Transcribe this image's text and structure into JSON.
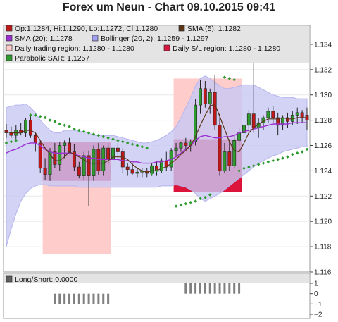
{
  "title": "Forex um Neun - Chart 09.10.2015 09:41",
  "colors": {
    "panel_bg": "#ffffff",
    "legend_bg": "#e4e4e4",
    "bollinger_fill": "#c8c8f4",
    "daily_trading_fill": "#ffcccc",
    "daily_sl_fill": "#dc143c",
    "up_candle": "#2e9b2e",
    "down_candle": "#c01818",
    "sma5": "#5a3518",
    "sma20": "#9b30d0",
    "psar": "#2e9b2e",
    "longshort": "#808080"
  },
  "chart_data": [
    {
      "type": "candlestick",
      "ylim": [
        1.116,
        1.1355
      ],
      "yticks": [
        1.116,
        1.118,
        1.12,
        1.122,
        1.124,
        1.126,
        1.128,
        1.13,
        1.132,
        1.134
      ],
      "ytick_labels": [
        "1.116",
        "1.118",
        "1.120",
        "1.122",
        "1.124",
        "1.126",
        "1.128",
        "1.130",
        "1.132",
        "1.134"
      ],
      "grid": true,
      "legend": [
        {
          "text": "Op:1.1284, Hi:1.1290, Lo:1.1272, Cl:1.1280",
          "color": "#c01818"
        },
        {
          "text": "SMA (5): 1.1282",
          "color": "#5a3518"
        },
        {
          "text": "SMA (20): 1.1278",
          "color": "#9b30d0"
        },
        {
          "text": "Bollinger (20, 2): 1.1259 - 1.1297",
          "color": "#a0a0ee"
        },
        {
          "text": "Daily trading region: 1.1280 - 1.1280",
          "color": "#ffcccc"
        },
        {
          "text": "Daily S/L region: 1.1280 - 1.1280",
          "color": "#dc143c"
        },
        {
          "text": "Parabolic SAR: 1.1257",
          "color": "#2e9b2e"
        }
      ],
      "candles": [
        {
          "o": 1.1272,
          "h": 1.1277,
          "l": 1.1266,
          "c": 1.127
        },
        {
          "o": 1.127,
          "h": 1.1275,
          "l": 1.1266,
          "c": 1.1268
        },
        {
          "o": 1.1268,
          "h": 1.1276,
          "l": 1.1265,
          "c": 1.1272
        },
        {
          "o": 1.1272,
          "h": 1.1278,
          "l": 1.1268,
          "c": 1.127
        },
        {
          "o": 1.127,
          "h": 1.1282,
          "l": 1.1267,
          "c": 1.128
        },
        {
          "o": 1.128,
          "h": 1.1284,
          "l": 1.1266,
          "c": 1.1268
        },
        {
          "o": 1.1268,
          "h": 1.127,
          "l": 1.1255,
          "c": 1.1262
        },
        {
          "o": 1.1262,
          "h": 1.1264,
          "l": 1.1238,
          "c": 1.1242
        },
        {
          "o": 1.1242,
          "h": 1.125,
          "l": 1.1233,
          "c": 1.1237
        },
        {
          "o": 1.1237,
          "h": 1.1258,
          "l": 1.1232,
          "c": 1.1255
        },
        {
          "o": 1.1255,
          "h": 1.1262,
          "l": 1.1242,
          "c": 1.1245
        },
        {
          "o": 1.1245,
          "h": 1.1263,
          "l": 1.124,
          "c": 1.126
        },
        {
          "o": 1.126,
          "h": 1.1264,
          "l": 1.125,
          "c": 1.1262
        },
        {
          "o": 1.1262,
          "h": 1.1266,
          "l": 1.1253,
          "c": 1.1255
        },
        {
          "o": 1.1255,
          "h": 1.1261,
          "l": 1.124,
          "c": 1.1243
        },
        {
          "o": 1.1243,
          "h": 1.1247,
          "l": 1.1234,
          "c": 1.1236
        },
        {
          "o": 1.1236,
          "h": 1.1255,
          "l": 1.1233,
          "c": 1.1252
        },
        {
          "o": 1.1252,
          "h": 1.1256,
          "l": 1.1212,
          "c": 1.1236
        },
        {
          "o": 1.1236,
          "h": 1.126,
          "l": 1.1232,
          "c": 1.1257
        },
        {
          "o": 1.1257,
          "h": 1.1262,
          "l": 1.1237,
          "c": 1.124
        },
        {
          "o": 1.124,
          "h": 1.126,
          "l": 1.1236,
          "c": 1.1258
        },
        {
          "o": 1.1258,
          "h": 1.1262,
          "l": 1.1245,
          "c": 1.1249
        },
        {
          "o": 1.1249,
          "h": 1.126,
          "l": 1.1244,
          "c": 1.1258
        },
        {
          "o": 1.1258,
          "h": 1.1262,
          "l": 1.1252,
          "c": 1.1255
        },
        {
          "o": 1.1255,
          "h": 1.1258,
          "l": 1.1238,
          "c": 1.1243
        },
        {
          "o": 1.1243,
          "h": 1.1246,
          "l": 1.1236,
          "c": 1.1241
        },
        {
          "o": 1.1241,
          "h": 1.1246,
          "l": 1.1237,
          "c": 1.1238
        },
        {
          "o": 1.1238,
          "h": 1.1242,
          "l": 1.1235,
          "c": 1.1239
        },
        {
          "o": 1.1239,
          "h": 1.1242,
          "l": 1.1235,
          "c": 1.124
        },
        {
          "o": 1.124,
          "h": 1.1242,
          "l": 1.1235,
          "c": 1.1238
        },
        {
          "o": 1.1238,
          "h": 1.1246,
          "l": 1.1236,
          "c": 1.1244
        },
        {
          "o": 1.1244,
          "h": 1.1248,
          "l": 1.1236,
          "c": 1.124
        },
        {
          "o": 1.124,
          "h": 1.125,
          "l": 1.1238,
          "c": 1.1248
        },
        {
          "o": 1.1248,
          "h": 1.1255,
          "l": 1.124,
          "c": 1.1243
        },
        {
          "o": 1.1243,
          "h": 1.1258,
          "l": 1.124,
          "c": 1.1256
        },
        {
          "o": 1.1256,
          "h": 1.1262,
          "l": 1.1252,
          "c": 1.1258
        },
        {
          "o": 1.1258,
          "h": 1.1263,
          "l": 1.1255,
          "c": 1.1262
        },
        {
          "o": 1.1262,
          "h": 1.1266,
          "l": 1.1256,
          "c": 1.126
        },
        {
          "o": 1.126,
          "h": 1.1265,
          "l": 1.1255,
          "c": 1.1263
        },
        {
          "o": 1.1263,
          "h": 1.1297,
          "l": 1.126,
          "c": 1.1292
        },
        {
          "o": 1.1292,
          "h": 1.1312,
          "l": 1.1285,
          "c": 1.1305
        },
        {
          "o": 1.1305,
          "h": 1.1311,
          "l": 1.129,
          "c": 1.1293
        },
        {
          "o": 1.1293,
          "h": 1.1305,
          "l": 1.1285,
          "c": 1.1302
        },
        {
          "o": 1.1302,
          "h": 1.1316,
          "l": 1.1272,
          "c": 1.1276
        },
        {
          "o": 1.1276,
          "h": 1.1285,
          "l": 1.1236,
          "c": 1.124
        },
        {
          "o": 1.124,
          "h": 1.1262,
          "l": 1.1238,
          "c": 1.1255
        },
        {
          "o": 1.1255,
          "h": 1.1265,
          "l": 1.124,
          "c": 1.1244
        },
        {
          "o": 1.1244,
          "h": 1.1268,
          "l": 1.1242,
          "c": 1.1264
        },
        {
          "o": 1.1264,
          "h": 1.1274,
          "l": 1.126,
          "c": 1.127
        },
        {
          "o": 1.127,
          "h": 1.1278,
          "l": 1.1265,
          "c": 1.1276
        },
        {
          "o": 1.1276,
          "h": 1.1288,
          "l": 1.127,
          "c": 1.1285
        },
        {
          "o": 1.1285,
          "h": 1.1327,
          "l": 1.127,
          "c": 1.1274
        },
        {
          "o": 1.1274,
          "h": 1.1282,
          "l": 1.1266,
          "c": 1.1278
        },
        {
          "o": 1.1278,
          "h": 1.1284,
          "l": 1.1272,
          "c": 1.1282
        },
        {
          "o": 1.1282,
          "h": 1.129,
          "l": 1.1278,
          "c": 1.1287
        },
        {
          "o": 1.1287,
          "h": 1.1291,
          "l": 1.1278,
          "c": 1.1282
        },
        {
          "o": 1.1282,
          "h": 1.1286,
          "l": 1.1268,
          "c": 1.1276
        },
        {
          "o": 1.1276,
          "h": 1.1284,
          "l": 1.1272,
          "c": 1.1282
        },
        {
          "o": 1.1282,
          "h": 1.1286,
          "l": 1.1274,
          "c": 1.1279
        },
        {
          "o": 1.1279,
          "h": 1.1287,
          "l": 1.1276,
          "c": 1.1284
        },
        {
          "o": 1.1284,
          "h": 1.129,
          "l": 1.1277,
          "c": 1.1286
        },
        {
          "o": 1.1286,
          "h": 1.1288,
          "l": 1.1278,
          "c": 1.1282
        },
        {
          "o": 1.1284,
          "h": 1.129,
          "l": 1.1272,
          "c": 1.128
        }
      ],
      "sma5": [
        1.1271,
        1.127,
        1.127,
        1.127,
        1.1272,
        1.1272,
        1.127,
        1.1264,
        1.1258,
        1.1253,
        1.1248,
        1.1248,
        1.1251,
        1.1255,
        1.1253,
        1.1251,
        1.1249,
        1.1246,
        1.1246,
        1.1246,
        1.1246,
        1.1248,
        1.1251,
        1.1251,
        1.1251,
        1.1249,
        1.1245,
        1.1242,
        1.124,
        1.1239,
        1.124,
        1.124,
        1.1242,
        1.1243,
        1.1246,
        1.1249,
        1.1253,
        1.1256,
        1.126,
        1.1267,
        1.1276,
        1.1284,
        1.1291,
        1.1293,
        1.1283,
        1.1273,
        1.1263,
        1.1256,
        1.1255,
        1.1262,
        1.127,
        1.1274,
        1.1277,
        1.1279,
        1.1281,
        1.1281,
        1.1281,
        1.1282,
        1.1281,
        1.1281,
        1.1282,
        1.1282,
        1.1282
      ],
      "sma20": [
        1.1254,
        1.1256,
        1.1257,
        1.1259,
        1.1261,
        1.1262,
        1.1262,
        1.126,
        1.1257,
        1.1255,
        1.1254,
        1.1254,
        1.1254,
        1.1254,
        1.1253,
        1.1252,
        1.1251,
        1.125,
        1.125,
        1.1249,
        1.1249,
        1.1249,
        1.1249,
        1.1249,
        1.1248,
        1.1248,
        1.1247,
        1.1247,
        1.1246,
        1.1246,
        1.1246,
        1.1247,
        1.1247,
        1.1248,
        1.1249,
        1.1251,
        1.1254,
        1.1257,
        1.126,
        1.1264,
        1.1267,
        1.1268,
        1.1267,
        1.1266,
        1.1266,
        1.1267,
        1.1267,
        1.1268,
        1.127,
        1.1271,
        1.1272,
        1.1273,
        1.1274,
        1.1275,
        1.1276,
        1.1277,
        1.1277,
        1.1277,
        1.1277,
        1.1278,
        1.1278,
        1.1278,
        1.1278
      ],
      "bollinger_upper": [
        1.129,
        1.1291,
        1.1292,
        1.1292,
        1.1293,
        1.129,
        1.1286,
        1.128,
        1.1276,
        1.1272,
        1.127,
        1.127,
        1.1272,
        1.1272,
        1.1272,
        1.1271,
        1.1271,
        1.127,
        1.1268,
        1.1268,
        1.1268,
        1.1268,
        1.1268,
        1.1267,
        1.1266,
        1.1265,
        1.1264,
        1.1263,
        1.1262,
        1.1262,
        1.1263,
        1.1264,
        1.1266,
        1.1268,
        1.1271,
        1.1275,
        1.1282,
        1.129,
        1.1298,
        1.1307,
        1.1313,
        1.1315,
        1.1313,
        1.131,
        1.1307,
        1.1305,
        1.1305,
        1.1306,
        1.1307,
        1.1308,
        1.1308,
        1.1308,
        1.1306,
        1.1304,
        1.1302,
        1.13,
        1.1299,
        1.1298,
        1.1298,
        1.1298,
        1.1297,
        1.1297,
        1.1297
      ],
      "bollinger_lower": [
        1.118,
        1.1194,
        1.1206,
        1.1216,
        1.1222,
        1.1226,
        1.1228,
        1.1229,
        1.1229,
        1.1228,
        1.1228,
        1.1228,
        1.1228,
        1.1228,
        1.1228,
        1.1227,
        1.1227,
        1.1227,
        1.1227,
        1.1227,
        1.1227,
        1.1227,
        1.1227,
        1.1227,
        1.1227,
        1.1227,
        1.1227,
        1.1227,
        1.1227,
        1.1227,
        1.1227,
        1.1227,
        1.1228,
        1.1228,
        1.1228,
        1.1229,
        1.1228,
        1.1227,
        1.1225,
        1.1222,
        1.1218,
        1.1216,
        1.1218,
        1.122,
        1.1222,
        1.1225,
        1.1228,
        1.1231,
        1.1234,
        1.1237,
        1.124,
        1.1243,
        1.1246,
        1.1248,
        1.125,
        1.1252,
        1.1253,
        1.1255,
        1.1256,
        1.1257,
        1.1258,
        1.1259,
        1.1259
      ],
      "psar": [
        {
          "i": 0,
          "v": 1.1262
        },
        {
          "i": 1,
          "v": 1.1263
        },
        {
          "i": 2,
          "v": 1.1264
        },
        {
          "i": 4,
          "v": 1.1279
        },
        {
          "i": 5,
          "v": 1.1284
        },
        {
          "i": 6,
          "v": 1.1284
        },
        {
          "i": 7,
          "v": 1.1283
        },
        {
          "i": 8,
          "v": 1.1282
        },
        {
          "i": 9,
          "v": 1.128
        },
        {
          "i": 10,
          "v": 1.1279
        },
        {
          "i": 11,
          "v": 1.1277
        },
        {
          "i": 12,
          "v": 1.1276
        },
        {
          "i": 13,
          "v": 1.1275
        },
        {
          "i": 14,
          "v": 1.1273
        },
        {
          "i": 15,
          "v": 1.1272
        },
        {
          "i": 16,
          "v": 1.1271
        },
        {
          "i": 17,
          "v": 1.127
        },
        {
          "i": 18,
          "v": 1.1269
        },
        {
          "i": 19,
          "v": 1.1268
        },
        {
          "i": 20,
          "v": 1.1267
        },
        {
          "i": 21,
          "v": 1.1266
        },
        {
          "i": 22,
          "v": 1.1265
        },
        {
          "i": 23,
          "v": 1.1264
        },
        {
          "i": 24,
          "v": 1.1263
        },
        {
          "i": 25,
          "v": 1.1262
        },
        {
          "i": 26,
          "v": 1.1261
        },
        {
          "i": 27,
          "v": 1.126
        },
        {
          "i": 28,
          "v": 1.1259
        },
        {
          "i": 29,
          "v": 1.1258
        },
        {
          "i": 30,
          "v": 1.1238
        },
        {
          "i": 31,
          "v": 1.124
        },
        {
          "i": 32,
          "v": 1.1242
        },
        {
          "i": 35,
          "v": 1.1212
        },
        {
          "i": 36,
          "v": 1.1213
        },
        {
          "i": 37,
          "v": 1.1214
        },
        {
          "i": 38,
          "v": 1.1215
        },
        {
          "i": 39,
          "v": 1.1216
        },
        {
          "i": 40,
          "v": 1.1218
        },
        {
          "i": 41,
          "v": 1.1219
        },
        {
          "i": 42,
          "v": 1.1221
        },
        {
          "i": 45,
          "v": 1.1314
        },
        {
          "i": 46,
          "v": 1.1313
        },
        {
          "i": 47,
          "v": 1.1312
        },
        {
          "i": 48,
          "v": 1.124
        },
        {
          "i": 49,
          "v": 1.1242
        },
        {
          "i": 50,
          "v": 1.1243
        },
        {
          "i": 51,
          "v": 1.1244
        },
        {
          "i": 52,
          "v": 1.1245
        },
        {
          "i": 53,
          "v": 1.1246
        },
        {
          "i": 54,
          "v": 1.1247
        },
        {
          "i": 55,
          "v": 1.1248
        },
        {
          "i": 56,
          "v": 1.1249
        },
        {
          "i": 57,
          "v": 1.125
        },
        {
          "i": 58,
          "v": 1.1251
        },
        {
          "i": 59,
          "v": 1.1253
        },
        {
          "i": 60,
          "v": 1.1254
        },
        {
          "i": 61,
          "v": 1.1255
        },
        {
          "i": 62,
          "v": 1.1257
        }
      ],
      "daily_trading_regions": [
        {
          "from": 8,
          "to": 21,
          "low": 1.1174,
          "high": 1.1263
        },
        {
          "from": 35,
          "to": 48,
          "low": 1.1224,
          "high": 1.1313
        }
      ],
      "daily_sl_regions": [
        {
          "from": 8,
          "to": 21,
          "low": 1.1232,
          "high": 1.1263
        },
        {
          "from": 35,
          "to": 48,
          "low": 1.1223,
          "high": 1.1265
        }
      ]
    },
    {
      "type": "bar",
      "ylim": [
        -2,
        1
      ],
      "yticks": [
        1,
        0,
        -1,
        -2
      ],
      "ytick_labels": [
        "1",
        "0",
        "−1",
        "−2"
      ],
      "legend": [
        {
          "text": "Long/Short: 0.0000",
          "color": "#606060"
        }
      ],
      "bars": [
        {
          "from": 10,
          "to": 21,
          "value": -1
        },
        {
          "from": 37,
          "to": 48,
          "value": 1
        }
      ]
    }
  ]
}
